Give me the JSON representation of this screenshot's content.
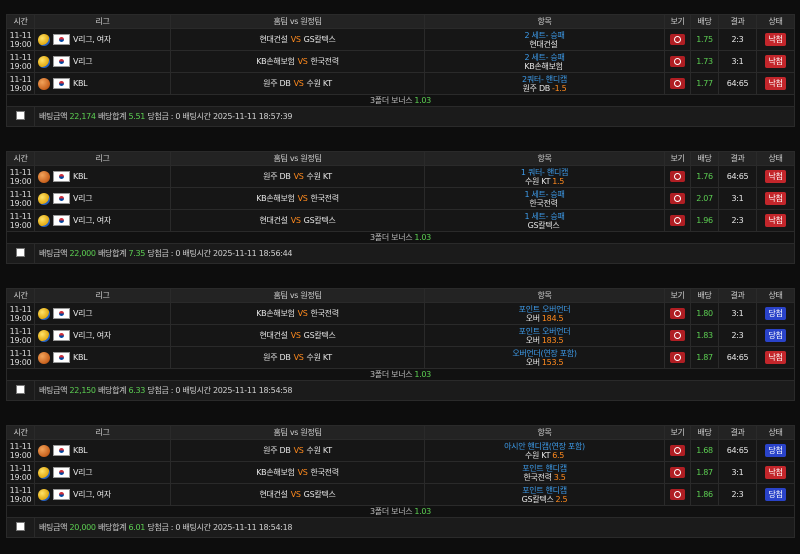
{
  "headers": {
    "time": "시간",
    "league": "리그",
    "match": "홈팀 vs 원정팀",
    "item": "항목",
    "view": "보기",
    "odds": "배당",
    "result": "결과",
    "status": "상태"
  },
  "vs_label": "VS",
  "slips": [
    {
      "games": [
        {
          "date": "11-11",
          "time": "19:00",
          "sport": "volleyball",
          "league": "V리그, 여자",
          "home": "현대건설",
          "away": "GS칼텍스",
          "pick_type": "2 세트- 승패",
          "pick_sel": "현대건설",
          "pick_line": "",
          "odds": "1.75",
          "score": "2:3",
          "status": "낙첨",
          "status_kind": "lose"
        },
        {
          "date": "11-11",
          "time": "19:00",
          "sport": "volleyball",
          "league": "V리그",
          "home": "KB손해보험",
          "away": "한국전력",
          "pick_type": "2 세트- 승패",
          "pick_sel": "KB손해보험",
          "pick_line": "",
          "odds": "1.73",
          "score": "3:1",
          "status": "낙첨",
          "status_kind": "lose"
        },
        {
          "date": "11-11",
          "time": "19:00",
          "sport": "basketball",
          "league": "KBL",
          "home": "원주 DB",
          "away": "수원 KT",
          "pick_type": "2쿼터- 핸디캡",
          "pick_sel": "원주 DB",
          "pick_line": "-1.5",
          "odds": "1.77",
          "score": "64:65",
          "status": "낙첨",
          "status_kind": "lose"
        }
      ],
      "bonus_label": "3폴더 보너스",
      "bonus_value": "1.03",
      "bet_amount_label": "배팅금액",
      "bet_amount": "22,174",
      "odds_total_label": "배당합계",
      "odds_total": "5.51",
      "payout_label": "당첨금 :",
      "payout": "0",
      "bet_time_label": "배팅시간",
      "bet_time": "2025-11-11 18:57:39"
    },
    {
      "games": [
        {
          "date": "11-11",
          "time": "19:00",
          "sport": "basketball",
          "league": "KBL",
          "home": "원주 DB",
          "away": "수원 KT",
          "pick_type": "1 쿼터- 핸디캡",
          "pick_sel": "수원 KT",
          "pick_line": "1.5",
          "odds": "1.76",
          "score": "64:65",
          "status": "낙첨",
          "status_kind": "lose"
        },
        {
          "date": "11-11",
          "time": "19:00",
          "sport": "volleyball",
          "league": "V리그",
          "home": "KB손해보험",
          "away": "한국전력",
          "pick_type": "1 세트- 승패",
          "pick_sel": "한국전력",
          "pick_line": "",
          "odds": "2.07",
          "score": "3:1",
          "status": "낙첨",
          "status_kind": "lose"
        },
        {
          "date": "11-11",
          "time": "19:00",
          "sport": "volleyball",
          "league": "V리그, 여자",
          "home": "현대건설",
          "away": "GS칼텍스",
          "pick_type": "1 세트- 승패",
          "pick_sel": "GS칼텍스",
          "pick_line": "",
          "odds": "1.96",
          "score": "2:3",
          "status": "낙첨",
          "status_kind": "lose"
        }
      ],
      "bonus_label": "3폴더 보너스",
      "bonus_value": "1.03",
      "bet_amount_label": "배팅금액",
      "bet_amount": "22,000",
      "odds_total_label": "배당합계",
      "odds_total": "7.35",
      "payout_label": "당첨금 :",
      "payout": "0",
      "bet_time_label": "배팅시간",
      "bet_time": "2025-11-11 18:56:44"
    },
    {
      "games": [
        {
          "date": "11-11",
          "time": "19:00",
          "sport": "volleyball",
          "league": "V리그",
          "home": "KB손해보험",
          "away": "한국전력",
          "pick_type": "포인트 오버언더",
          "pick_sel": "오버",
          "pick_line": "184.5",
          "odds": "1.80",
          "score": "3:1",
          "status": "당첨",
          "status_kind": "win"
        },
        {
          "date": "11-11",
          "time": "19:00",
          "sport": "volleyball",
          "league": "V리그, 여자",
          "home": "현대건설",
          "away": "GS칼텍스",
          "pick_type": "포인트 오버언더",
          "pick_sel": "오버",
          "pick_line": "183.5",
          "odds": "1.83",
          "score": "2:3",
          "status": "당첨",
          "status_kind": "win"
        },
        {
          "date": "11-11",
          "time": "19:00",
          "sport": "basketball",
          "league": "KBL",
          "home": "원주 DB",
          "away": "수원 KT",
          "pick_type": "오버언더(연장 포함)",
          "pick_sel": "오버",
          "pick_line": "153.5",
          "odds": "1.87",
          "score": "64:65",
          "status": "낙첨",
          "status_kind": "lose"
        }
      ],
      "bonus_label": "3폴더 보너스",
      "bonus_value": "1.03",
      "bet_amount_label": "배팅금액",
      "bet_amount": "22,150",
      "odds_total_label": "배당합계",
      "odds_total": "6.33",
      "payout_label": "당첨금 :",
      "payout": "0",
      "bet_time_label": "배팅시간",
      "bet_time": "2025-11-11 18:54:58"
    },
    {
      "games": [
        {
          "date": "11-11",
          "time": "19:00",
          "sport": "basketball",
          "league": "KBL",
          "home": "원주 DB",
          "away": "수원 KT",
          "pick_type": "아시안 핸디캡(연장 포함)",
          "pick_sel": "수원 KT",
          "pick_line": "6.5",
          "odds": "1.68",
          "score": "64:65",
          "status": "당첨",
          "status_kind": "win"
        },
        {
          "date": "11-11",
          "time": "19:00",
          "sport": "volleyball",
          "league": "V리그",
          "home": "KB손해보험",
          "away": "한국전력",
          "pick_type": "포인트 핸디캡",
          "pick_sel": "한국전력",
          "pick_line": "3.5",
          "odds": "1.87",
          "score": "3:1",
          "status": "낙첨",
          "status_kind": "lose"
        },
        {
          "date": "11-11",
          "time": "19:00",
          "sport": "volleyball",
          "league": "V리그, 여자",
          "home": "현대건설",
          "away": "GS칼텍스",
          "pick_type": "포인트 핸디캡",
          "pick_sel": "GS칼텍스",
          "pick_line": "2.5",
          "odds": "1.86",
          "score": "2:3",
          "status": "당첨",
          "status_kind": "win"
        }
      ],
      "bonus_label": "3폴더 보너스",
      "bonus_value": "1.03",
      "bet_amount_label": "배팅금액",
      "bet_amount": "20,000",
      "odds_total_label": "배당합계",
      "odds_total": "6.01",
      "payout_label": "당첨금 :",
      "payout": "0",
      "bet_time_label": "배팅시간",
      "bet_time": "2025-11-11 18:54:18"
    }
  ]
}
